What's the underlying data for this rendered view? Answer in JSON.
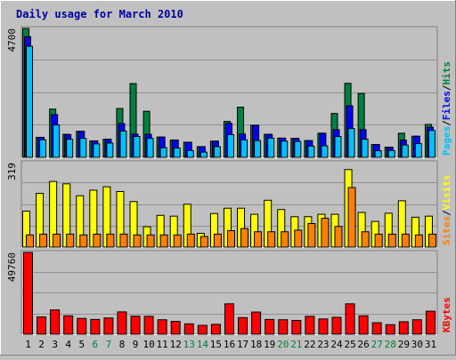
{
  "title": "Daily usage for March 2010",
  "colors": {
    "background": "#c0c0c0",
    "title": "#0000a0",
    "hits": "#008040",
    "files": "#0000ff",
    "pages": "#00c0ff",
    "visits": "#ffff00",
    "sites": "#ff8000",
    "kbytes": "#ff0000",
    "weekend_label": "#008040",
    "weekday_label": "#000000"
  },
  "chart_data": [
    {
      "type": "bar",
      "panel": "hits-files-pages",
      "ymax_label": "4700",
      "ylim": [
        0,
        4700
      ],
      "grid": true,
      "legend": [
        "Pages",
        "/",
        "Files",
        "/",
        "Hits"
      ],
      "categories": [
        "1",
        "2",
        "3",
        "4",
        "5",
        "6",
        "7",
        "8",
        "9",
        "10",
        "11",
        "12",
        "13",
        "14",
        "15",
        "16",
        "17",
        "18",
        "19",
        "20",
        "21",
        "22",
        "23",
        "24",
        "25",
        "26",
        "27",
        "28",
        "29",
        "30",
        "31"
      ],
      "series": [
        {
          "name": "Hits",
          "values": [
            4700,
            730,
            1760,
            840,
            950,
            600,
            660,
            1780,
            2690,
            1680,
            740,
            630,
            550,
            390,
            590,
            1310,
            1830,
            1170,
            840,
            700,
            690,
            610,
            880,
            1600,
            2700,
            2330,
            470,
            370,
            880,
            770,
            1200
          ]
        },
        {
          "name": "Files",
          "values": [
            4400,
            730,
            1560,
            830,
            950,
            600,
            660,
            1230,
            840,
            840,
            740,
            630,
            550,
            390,
            590,
            1240,
            850,
            1170,
            840,
            700,
            690,
            610,
            880,
            1010,
            1880,
            1010,
            470,
            370,
            630,
            770,
            1100
          ]
        },
        {
          "name": "Pages",
          "values": [
            4050,
            640,
            1180,
            660,
            690,
            490,
            520,
            960,
            760,
            690,
            350,
            340,
            250,
            190,
            390,
            830,
            640,
            610,
            700,
            590,
            580,
            410,
            420,
            760,
            1050,
            660,
            240,
            250,
            450,
            500,
            980
          ]
        }
      ]
    },
    {
      "type": "bar",
      "panel": "visits-sites",
      "ymax_label": "319",
      "ylim": [
        0,
        319
      ],
      "grid": true,
      "legend": [
        "Sites",
        "/",
        "Visits"
      ],
      "categories": [
        "1",
        "2",
        "3",
        "4",
        "5",
        "6",
        "7",
        "8",
        "9",
        "10",
        "11",
        "12",
        "13",
        "14",
        "15",
        "16",
        "17",
        "18",
        "19",
        "20",
        "21",
        "22",
        "23",
        "24",
        "25",
        "26",
        "27",
        "28",
        "29",
        "30",
        "31"
      ],
      "series": [
        {
          "name": "Visits",
          "values": [
            136,
            203,
            248,
            239,
            194,
            215,
            228,
            210,
            172,
            77,
            120,
            117,
            162,
            52,
            127,
            147,
            147,
            124,
            177,
            142,
            115,
            115,
            124,
            124,
            293,
            131,
            97,
            128,
            175,
            113,
            117
          ]
        },
        {
          "name": "Sites",
          "values": [
            46,
            49,
            49,
            49,
            46,
            49,
            49,
            49,
            46,
            46,
            46,
            46,
            49,
            40,
            49,
            62,
            70,
            58,
            58,
            58,
            64,
            89,
            109,
            78,
            225,
            58,
            49,
            49,
            49,
            46,
            49
          ]
        }
      ]
    },
    {
      "type": "bar",
      "panel": "kbytes",
      "ymax_label": "49760",
      "ylim": [
        0,
        49760
      ],
      "grid": true,
      "legend": [
        "KBytes"
      ],
      "categories": [
        "1",
        "2",
        "3",
        "4",
        "5",
        "6",
        "7",
        "8",
        "9",
        "10",
        "11",
        "12",
        "13",
        "14",
        "15",
        "16",
        "17",
        "18",
        "19",
        "20",
        "21",
        "22",
        "23",
        "24",
        "25",
        "26",
        "27",
        "28",
        "29",
        "30",
        "31"
      ],
      "series": [
        {
          "name": "KBytes",
          "values": [
            49760,
            10500,
            14800,
            11200,
            9600,
            9000,
            9900,
            13600,
            11000,
            10900,
            8800,
            7800,
            6300,
            5400,
            6000,
            18500,
            10100,
            13500,
            9000,
            8800,
            8400,
            10900,
            9300,
            10300,
            18500,
            11200,
            7000,
            5800,
            7600,
            8800,
            14000
          ]
        }
      ]
    }
  ],
  "x_label_colors": [
    "#000000",
    "#000000",
    "#000000",
    "#000000",
    "#000000",
    "#008040",
    "#008040",
    "#000000",
    "#000000",
    "#000000",
    "#000000",
    "#000000",
    "#008040",
    "#008040",
    "#000000",
    "#000000",
    "#000000",
    "#000000",
    "#000000",
    "#008040",
    "#008040",
    "#000000",
    "#000000",
    "#000000",
    "#000000",
    "#000000",
    "#008040",
    "#008040",
    "#000000",
    "#000000",
    "#000000"
  ]
}
